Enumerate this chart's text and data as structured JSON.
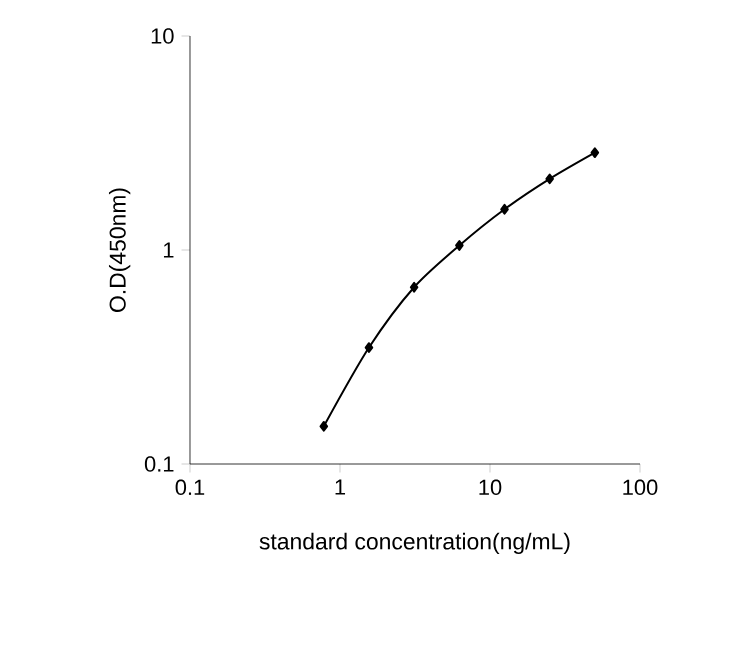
{
  "chart_data": {
    "type": "line",
    "xlabel": "standard concentration(ng/mL)",
    "ylabel": "O.D(450nm)",
    "log": "xy",
    "x": [
      0.78,
      1.56,
      3.12,
      6.25,
      12.5,
      25,
      50
    ],
    "values": [
      0.15,
      0.35,
      0.67,
      1.05,
      1.55,
      2.15,
      2.85
    ],
    "color": "#000000",
    "marker": "diamond",
    "line_style": "solid",
    "xlim": [
      0.1,
      100
    ],
    "ylim": [
      0.1,
      10
    ],
    "xticks": [
      0.1,
      1,
      10,
      100
    ],
    "yticks": [
      0.1,
      1,
      10
    ]
  }
}
